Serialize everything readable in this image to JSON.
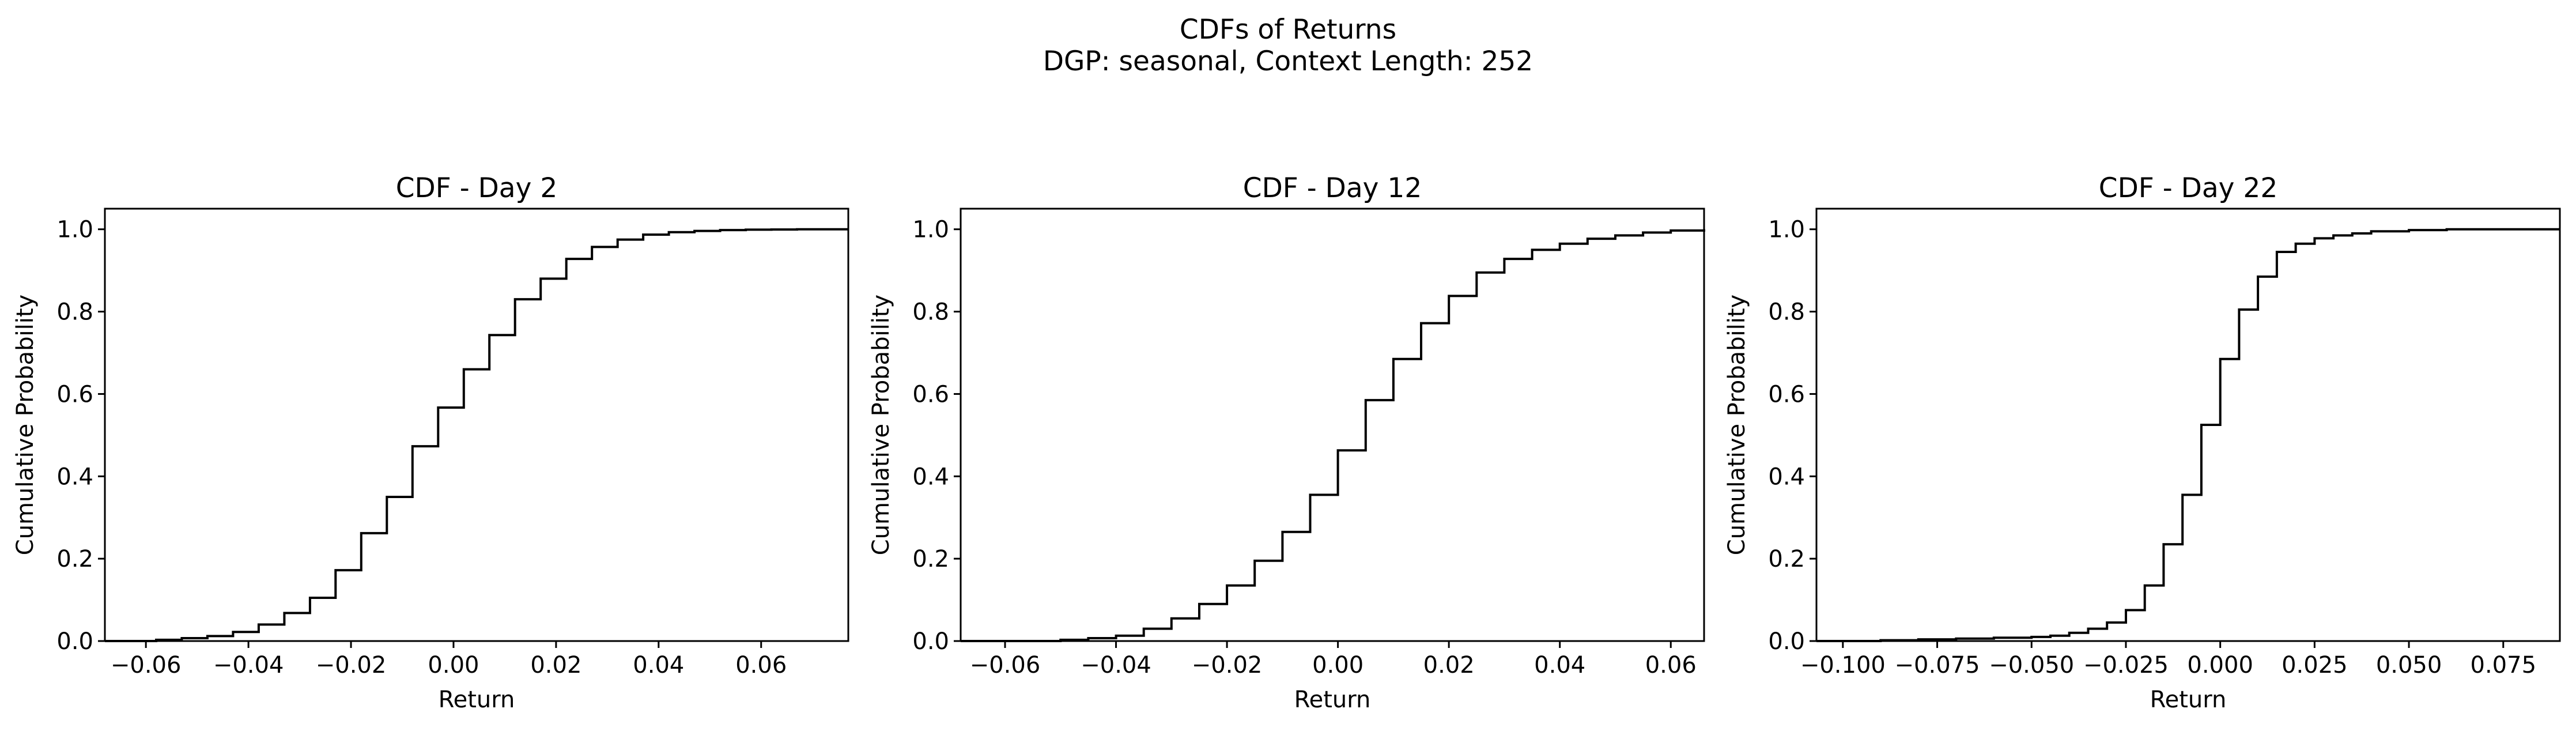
{
  "figure": {
    "title_line1": "CDFs of Returns",
    "title_line2": "DGP: seasonal, Context Length: 252"
  },
  "chart_data": [
    {
      "type": "line",
      "step": true,
      "title": "CDF - Day 2",
      "xlabel": "Return",
      "ylabel": "Cumulative Probability",
      "xlim": [
        -0.068,
        0.077
      ],
      "ylim": [
        0.0,
        1.05
      ],
      "xticks": [
        -0.06,
        -0.04,
        -0.02,
        0.0,
        0.02,
        0.04,
        0.06
      ],
      "xtick_labels": [
        "−0.06",
        "−0.04",
        "−0.02",
        "0.00",
        "0.02",
        "0.04",
        "0.06"
      ],
      "yticks": [
        0.0,
        0.2,
        0.4,
        0.6,
        0.8,
        1.0
      ],
      "ytick_labels": [
        "0.0",
        "0.2",
        "0.4",
        "0.6",
        "0.8",
        "1.0"
      ],
      "color": "#000000",
      "x": [
        -0.068,
        -0.058,
        -0.053,
        -0.048,
        -0.043,
        -0.038,
        -0.033,
        -0.028,
        -0.023,
        -0.018,
        -0.013,
        -0.008,
        -0.003,
        0.002,
        0.007,
        0.012,
        0.017,
        0.022,
        0.027,
        0.032,
        0.037,
        0.042,
        0.047,
        0.052,
        0.057,
        0.062,
        0.067,
        0.072,
        0.077
      ],
      "y": [
        0.0,
        0.003,
        0.007,
        0.012,
        0.022,
        0.04,
        0.068,
        0.105,
        0.172,
        0.262,
        0.35,
        0.473,
        0.567,
        0.66,
        0.743,
        0.83,
        0.88,
        0.928,
        0.957,
        0.975,
        0.987,
        0.993,
        0.996,
        0.998,
        0.999,
        0.9995,
        1.0,
        1.0,
        1.0
      ]
    },
    {
      "type": "line",
      "step": true,
      "title": "CDF - Day 12",
      "xlabel": "Return",
      "ylabel": "Cumulative Probability",
      "xlim": [
        -0.068,
        0.066
      ],
      "ylim": [
        0.0,
        1.05
      ],
      "xticks": [
        -0.06,
        -0.04,
        -0.02,
        0.0,
        0.02,
        0.04,
        0.06
      ],
      "xtick_labels": [
        "−0.06",
        "−0.04",
        "−0.02",
        "0.00",
        "0.02",
        "0.04",
        "0.06"
      ],
      "yticks": [
        0.0,
        0.2,
        0.4,
        0.6,
        0.8,
        1.0
      ],
      "ytick_labels": [
        "0.0",
        "0.2",
        "0.4",
        "0.6",
        "0.8",
        "1.0"
      ],
      "color": "#000000",
      "x": [
        -0.068,
        -0.05,
        -0.045,
        -0.04,
        -0.035,
        -0.03,
        -0.025,
        -0.02,
        -0.015,
        -0.01,
        -0.005,
        0.0,
        0.005,
        0.01,
        0.015,
        0.02,
        0.025,
        0.03,
        0.035,
        0.04,
        0.045,
        0.05,
        0.055,
        0.06,
        0.066
      ],
      "y": [
        0.0,
        0.003,
        0.007,
        0.013,
        0.03,
        0.055,
        0.09,
        0.135,
        0.195,
        0.265,
        0.355,
        0.463,
        0.585,
        0.685,
        0.772,
        0.838,
        0.895,
        0.928,
        0.95,
        0.965,
        0.977,
        0.985,
        0.992,
        0.997,
        1.0
      ]
    },
    {
      "type": "line",
      "step": true,
      "title": "CDF - Day 22",
      "xlabel": "Return",
      "ylabel": "Cumulative Probability",
      "xlim": [
        -0.107,
        0.09
      ],
      "ylim": [
        0.0,
        1.05
      ],
      "xticks": [
        -0.1,
        -0.075,
        -0.05,
        -0.025,
        0.0,
        0.025,
        0.05,
        0.075
      ],
      "xtick_labels": [
        "−0.100",
        "−0.075",
        "−0.050",
        "−0.025",
        "0.000",
        "0.025",
        "0.050",
        "0.075"
      ],
      "yticks": [
        0.0,
        0.2,
        0.4,
        0.6,
        0.8,
        1.0
      ],
      "ytick_labels": [
        "0.0",
        "0.2",
        "0.4",
        "0.6",
        "0.8",
        "1.0"
      ],
      "color": "#000000",
      "x": [
        -0.107,
        -0.09,
        -0.08,
        -0.07,
        -0.06,
        -0.05,
        -0.045,
        -0.04,
        -0.035,
        -0.03,
        -0.025,
        -0.02,
        -0.015,
        -0.01,
        -0.005,
        0.0,
        0.005,
        0.01,
        0.015,
        0.02,
        0.025,
        0.03,
        0.035,
        0.04,
        0.05,
        0.06,
        0.07,
        0.09
      ],
      "y": [
        0.0,
        0.002,
        0.004,
        0.006,
        0.008,
        0.01,
        0.013,
        0.02,
        0.03,
        0.045,
        0.075,
        0.135,
        0.235,
        0.355,
        0.525,
        0.685,
        0.805,
        0.885,
        0.945,
        0.965,
        0.978,
        0.985,
        0.99,
        0.995,
        0.998,
        1.0,
        1.0,
        1.0
      ]
    }
  ]
}
